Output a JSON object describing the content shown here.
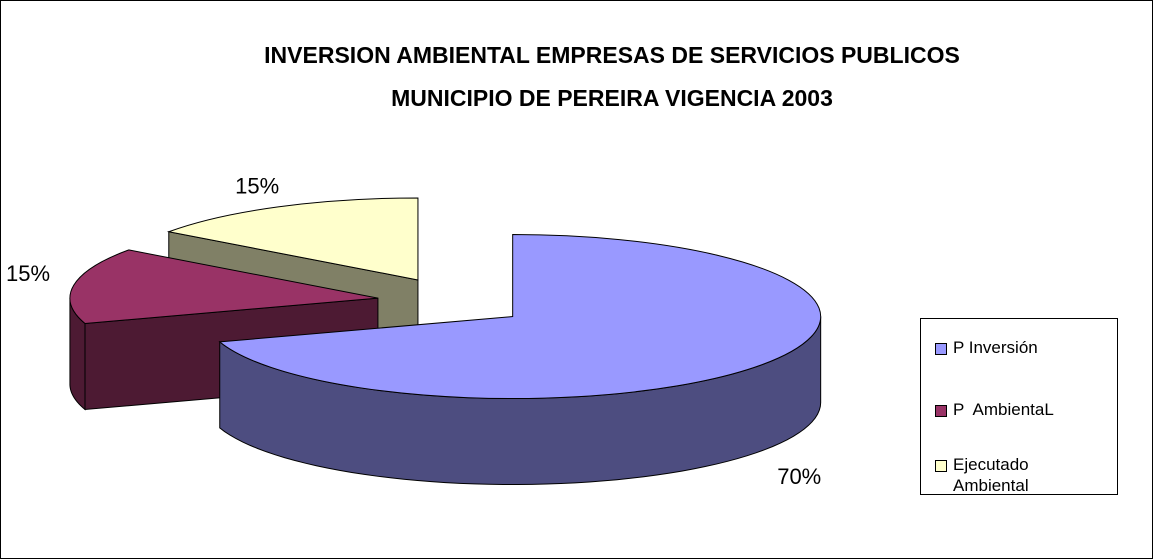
{
  "chart_data": {
    "type": "pie3d",
    "title": [
      "INVERSION AMBIENTAL EMPRESAS DE SERVICIOS PUBLICOS",
      "MUNICIPIO DE PEREIRA VIGENCIA 2003"
    ],
    "categories": [
      "P Inversión",
      "P  AmbientaL",
      "Ejecutado Ambiental"
    ],
    "values": [
      70,
      15,
      15
    ],
    "value_labels": [
      "70%",
      "15%",
      "15%"
    ],
    "colors": [
      "#9999ff",
      "#993366",
      "#ffffcc"
    ],
    "legend": "right"
  }
}
